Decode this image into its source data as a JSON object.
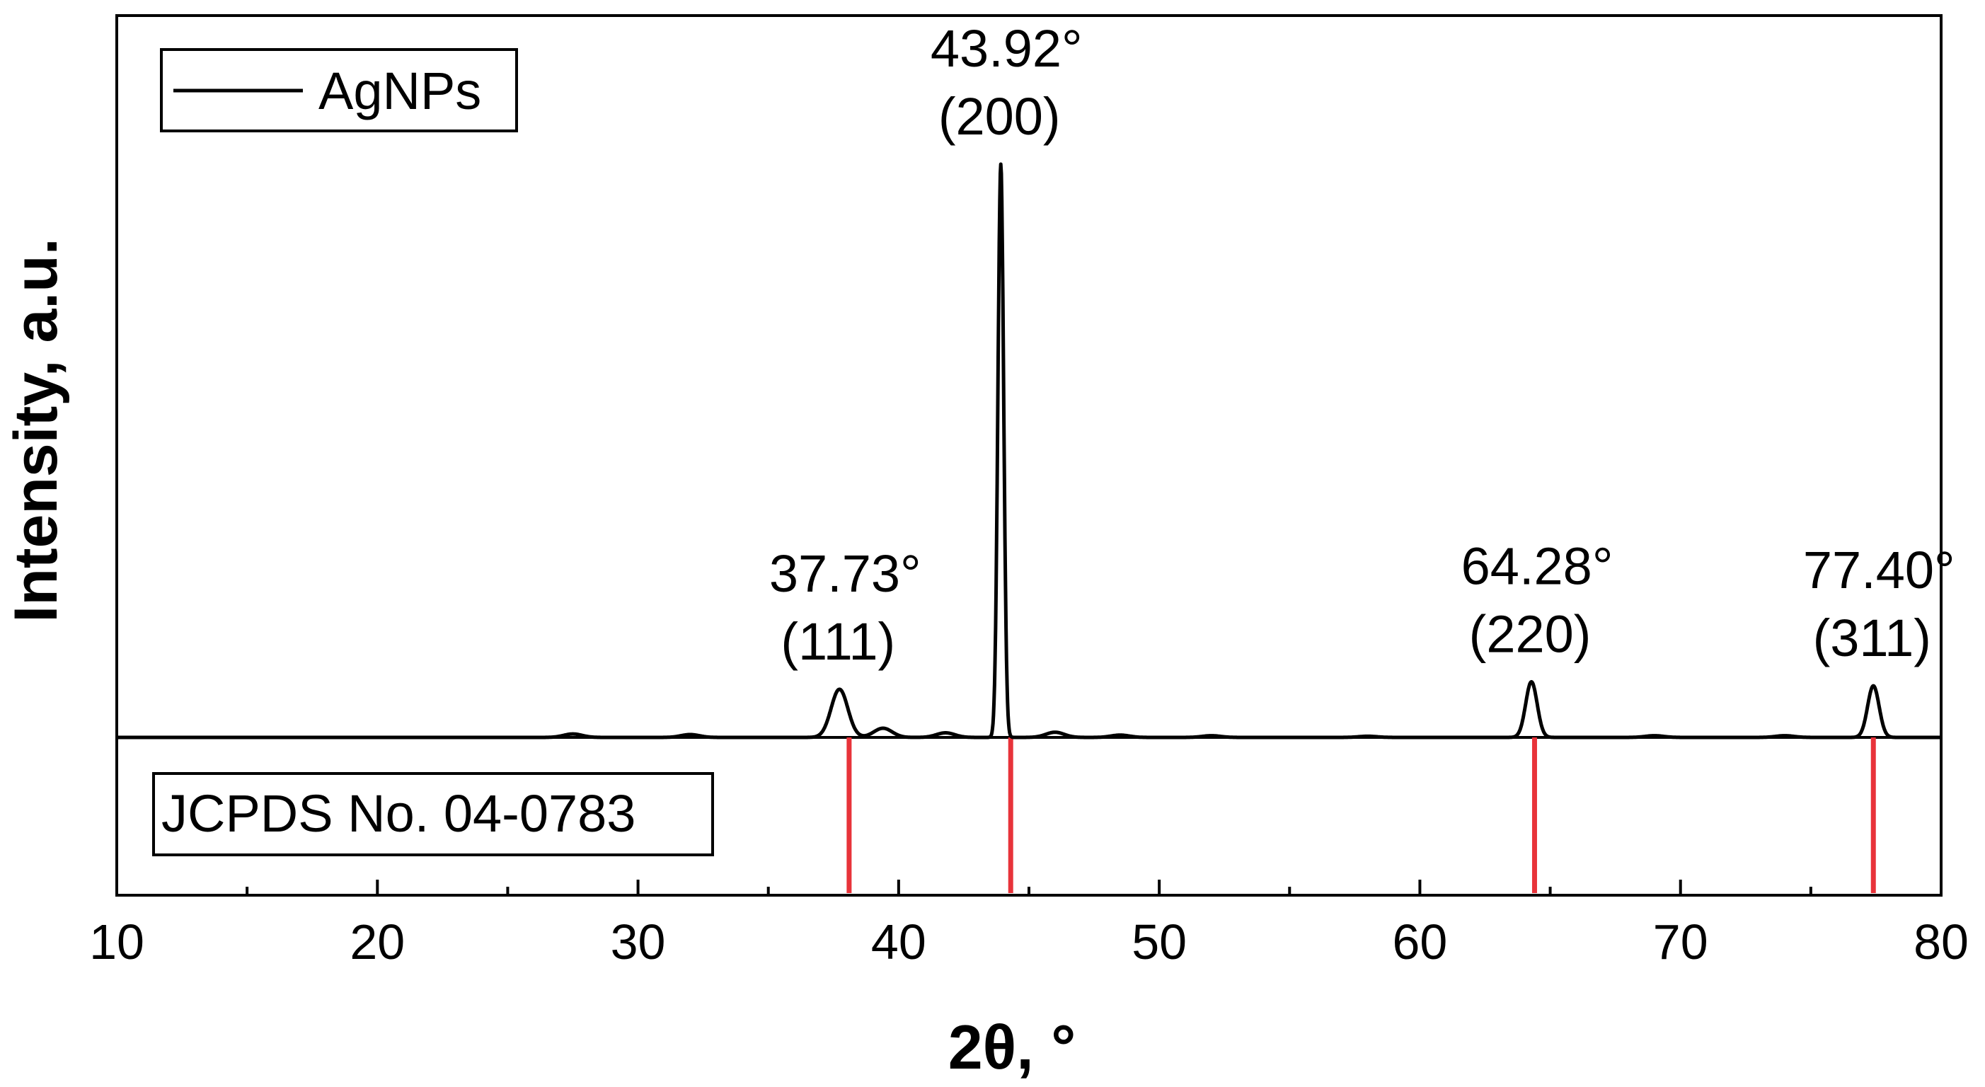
{
  "chart_data": {
    "type": "line",
    "xlabel": "2θ, °",
    "ylabel": "Intensity, a.u.",
    "xlim": [
      10,
      80
    ],
    "ylim": [
      0,
      100
    ],
    "x_ticks": [
      10,
      20,
      30,
      40,
      50,
      60,
      70,
      80
    ],
    "x_tick_labels": [
      "10",
      "20",
      "30",
      "40",
      "50",
      "60",
      "70",
      "80"
    ],
    "legend": {
      "position": "top-left",
      "label": "AgNPs"
    },
    "grid": false,
    "series": [
      {
        "name": "AgNPs",
        "color": "#000000",
        "baseline": 0,
        "noise_bumps": [
          [
            27.5,
            0.6
          ],
          [
            32.0,
            0.5
          ],
          [
            39.4,
            1.6
          ],
          [
            41.8,
            0.8
          ],
          [
            46.0,
            0.9
          ],
          [
            48.5,
            0.4
          ],
          [
            52.0,
            0.3
          ],
          [
            58.0,
            0.2
          ],
          [
            69.0,
            0.3
          ],
          [
            74.0,
            0.3
          ]
        ],
        "peaks": [
          {
            "x": 37.73,
            "height": 8.4,
            "width": 0.32
          },
          {
            "x": 43.92,
            "height": 100,
            "width": 0.11
          },
          {
            "x": 64.28,
            "height": 9.7,
            "width": 0.22
          },
          {
            "x": 77.4,
            "height": 9.0,
            "width": 0.22
          }
        ]
      }
    ],
    "annotations": [
      {
        "angle": "37.73°",
        "hkl": "(111)",
        "x": 37.73
      },
      {
        "angle": "43.92°",
        "hkl": "(200)",
        "x": 43.92
      },
      {
        "angle": "64.28°",
        "hkl": "(220)",
        "x": 64.28
      },
      {
        "angle": "77.40°",
        "hkl": "(311)",
        "x": 77.4
      }
    ],
    "reference": {
      "label": "JCPDS No. 04-0783",
      "color": "#e8333a",
      "positions": [
        38.1,
        44.3,
        64.4,
        77.4
      ]
    }
  }
}
